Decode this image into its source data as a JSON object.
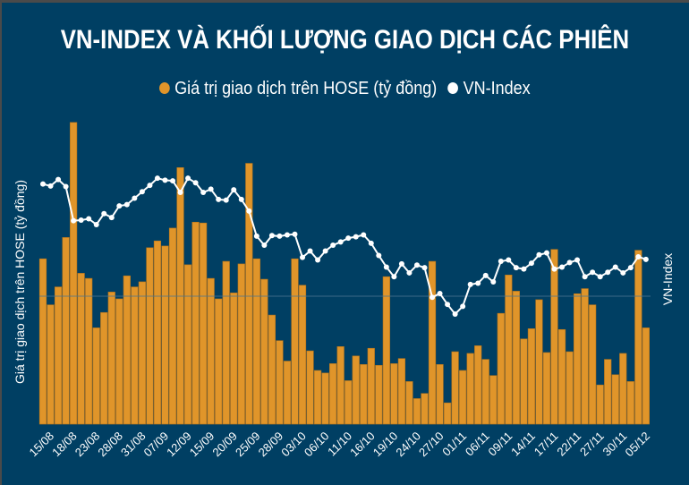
{
  "title": "VN-INDEX VÀ KHỐI LƯỢNG GIAO DỊCH CÁC PHIÊN",
  "legend": [
    {
      "label": "Giá trị giao dịch trên HOSE (tỷ đồng)",
      "color": "#e0952a"
    },
    {
      "label": "VN-Index",
      "color": "#ffffff"
    }
  ],
  "colors": {
    "background": "#003f63",
    "bar": "#e0952a",
    "bar_edge": "#b5731a",
    "line": "#ffffff",
    "grid": "#4d7590"
  },
  "chart_data": {
    "type": "bar+line",
    "title": "VN-INDEX VÀ KHỐI LƯỢNG GIAO DỊCH CÁC PHIÊN",
    "ylabel": "Giá trị giao dịch trên HOSE (tỷ đồng)",
    "y2label": "VN-Index",
    "ylim": [
      0,
      35800
    ],
    "y2lim": [
      857,
      1331
    ],
    "legend_position": "top-center",
    "grid": true,
    "tick_labels": [
      "15/08",
      "18/08",
      "23/08",
      "28/08",
      "31/08",
      "07/09",
      "12/09",
      "15/09",
      "20/09",
      "25/09",
      "28/09",
      "03/10",
      "06/10",
      "11/10",
      "16/10",
      "19/10",
      "24/10",
      "27/10",
      "01/11",
      "06/11",
      "09/11",
      "14/11",
      "17/11",
      "22/11",
      "27/11",
      "30/11",
      "05/12"
    ],
    "series": [
      {
        "name": "Giá trị giao dịch trên HOSE (tỷ đồng)",
        "type": "bar",
        "values": [
          19400,
          14000,
          16100,
          21900,
          35400,
          17700,
          17100,
          11300,
          13100,
          15500,
          14700,
          17400,
          16100,
          16700,
          20700,
          21500,
          20900,
          23000,
          30100,
          18700,
          23700,
          23600,
          17100,
          14700,
          19100,
          15400,
          18800,
          30600,
          19400,
          17000,
          12800,
          9800,
          7400,
          19400,
          16300,
          8600,
          6300,
          6000,
          7100,
          9100,
          5100,
          8000,
          7000,
          8900,
          6900,
          17300,
          7100,
          7700,
          5000,
          3000,
          3600,
          19100,
          7000,
          2500,
          8500,
          6300,
          8300,
          9200,
          7600,
          5700,
          13000,
          17500,
          15600,
          10000,
          11200,
          14600,
          8400,
          20500,
          11100,
          8500,
          15300,
          15900,
          14000,
          4600,
          7600,
          5800,
          8300,
          5000,
          20400,
          11300
        ]
      },
      {
        "name": "VN-Index",
        "type": "line",
        "values": [
          1230,
          1227,
          1237,
          1226,
          1173,
          1174,
          1176,
          1167,
          1184,
          1178,
          1196,
          1198,
          1208,
          1218,
          1228,
          1239,
          1236,
          1235,
          1217,
          1239,
          1232,
          1217,
          1222,
          1206,
          1205,
          1221,
          1206,
          1188,
          1149,
          1135,
          1150,
          1149,
          1151,
          1152,
          1116,
          1126,
          1112,
          1126,
          1135,
          1140,
          1146,
          1148,
          1151,
          1138,
          1119,
          1101,
          1086,
          1106,
          1092,
          1104,
          1100,
          1054,
          1060,
          1043,
          1028,
          1040,
          1074,
          1076,
          1088,
          1078,
          1110,
          1112,
          1100,
          1098,
          1107,
          1120,
          1123,
          1098,
          1101,
          1108,
          1112,
          1086,
          1093,
          1086,
          1093,
          1101,
          1092,
          1100,
          1117,
          1113
        ]
      }
    ]
  }
}
